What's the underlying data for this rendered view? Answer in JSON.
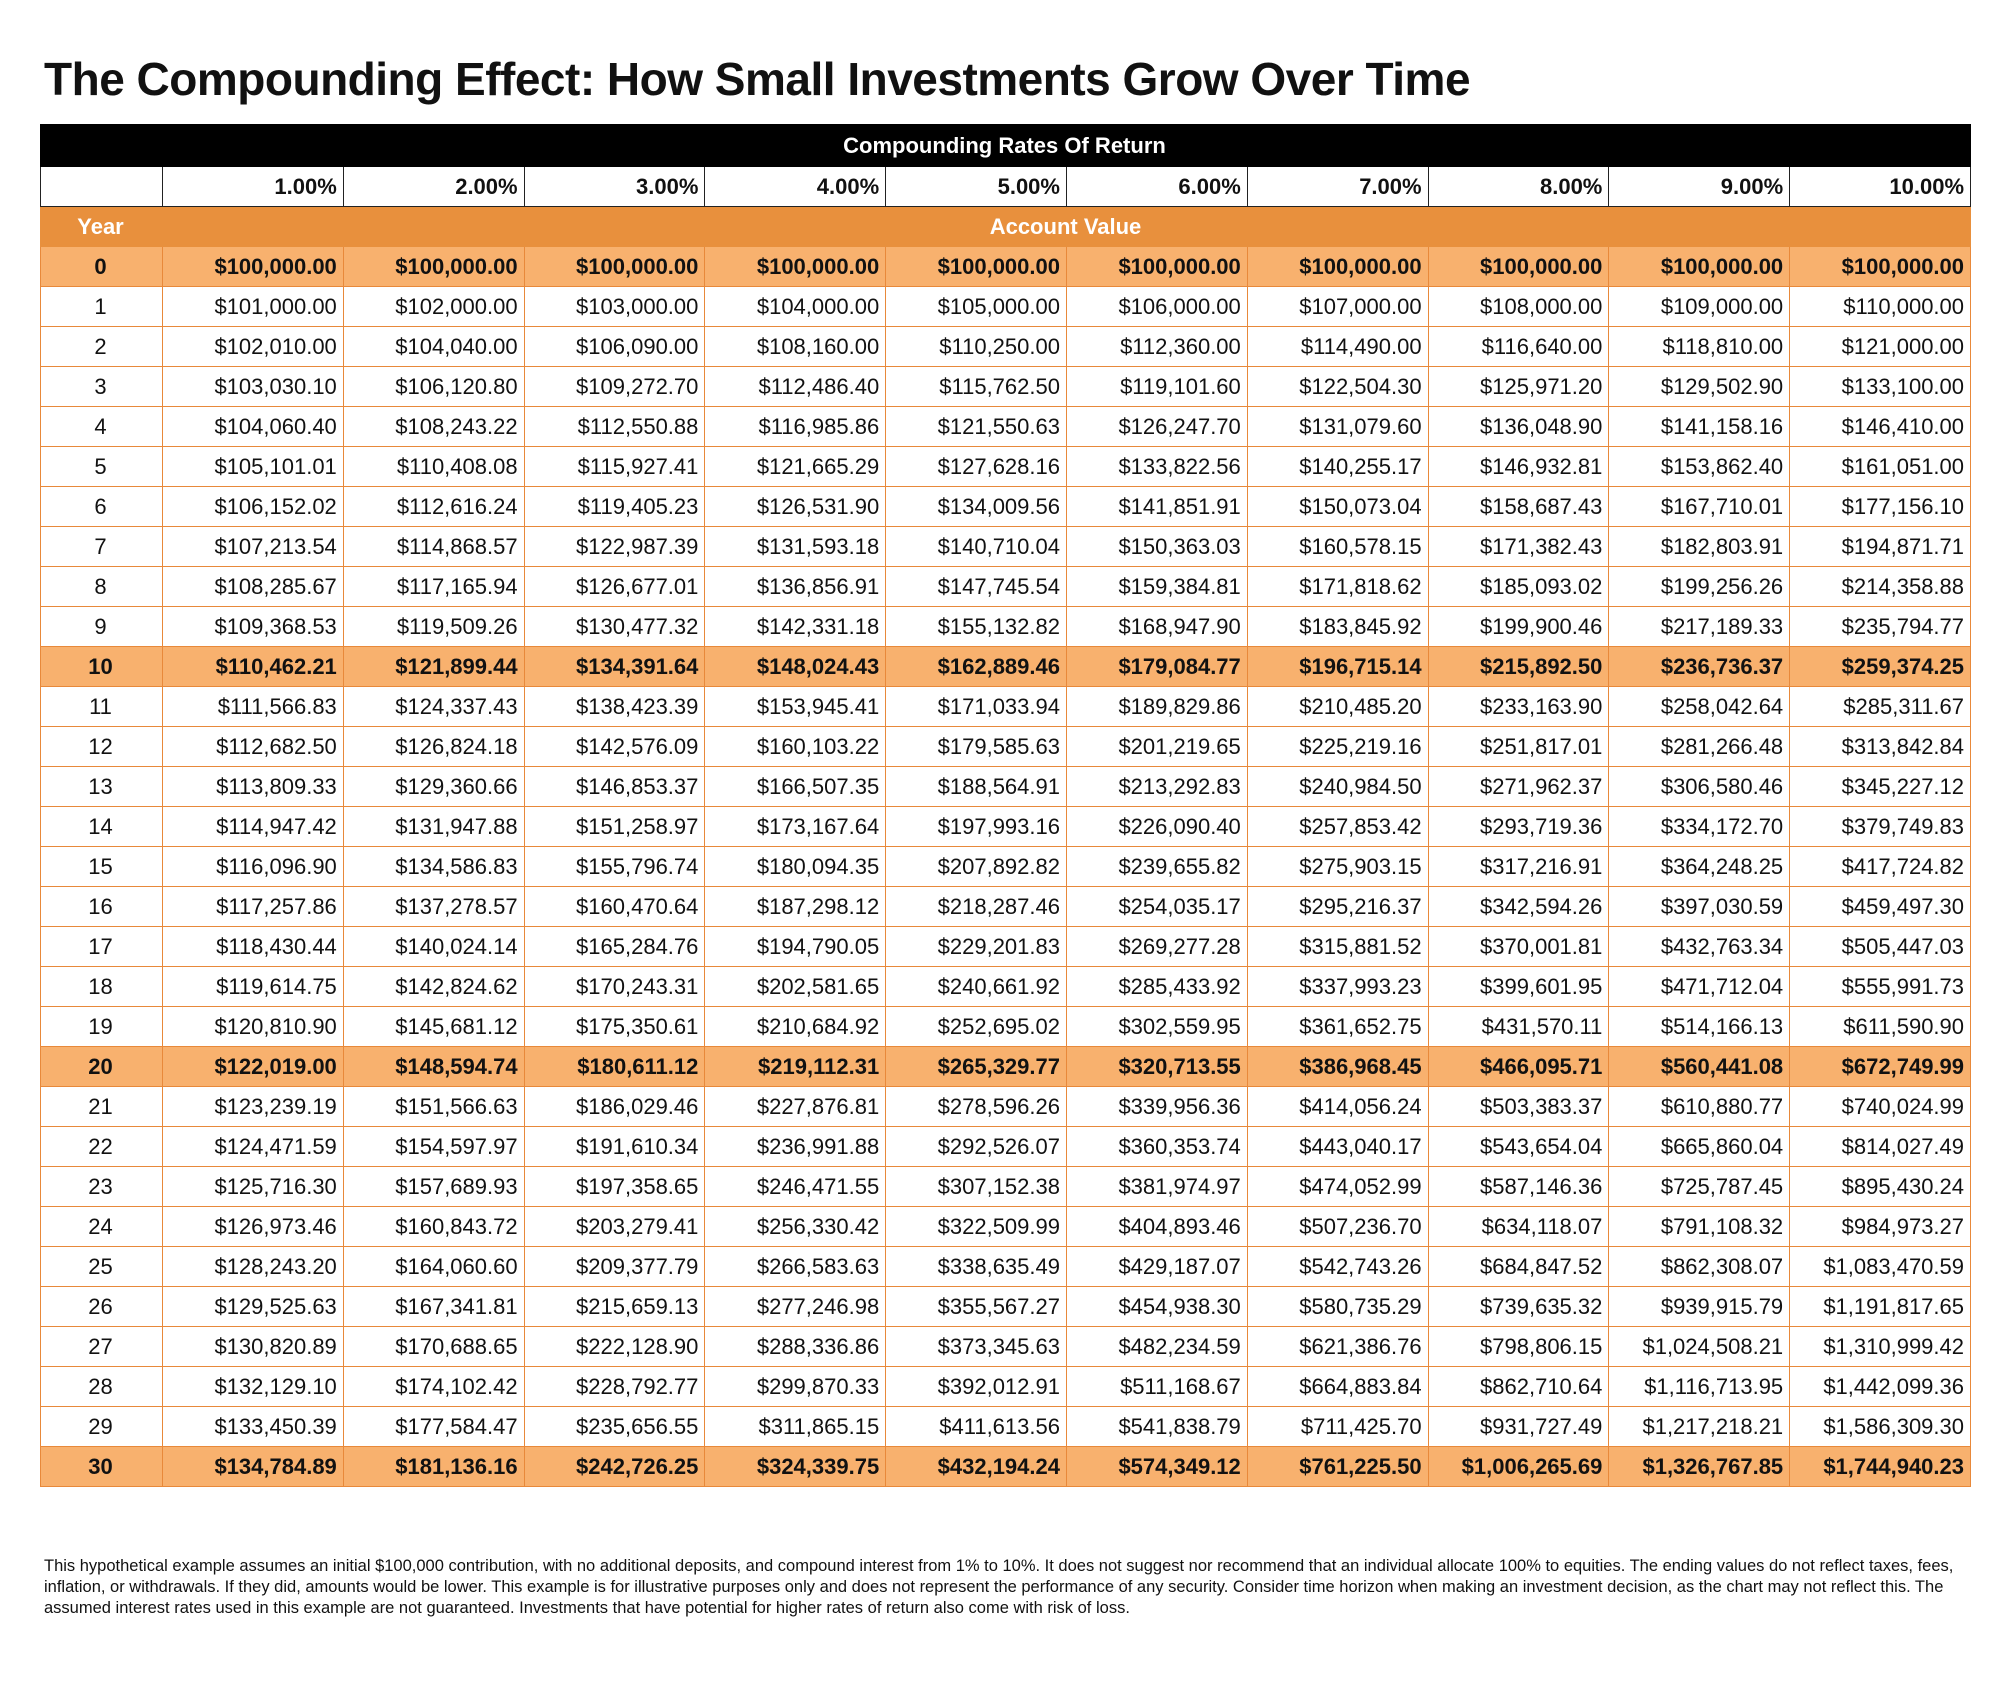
{
  "title": "The Compounding Effect: How Small Investments Grow Over Time",
  "table": {
    "group_header": "Compounding Rates Of Return",
    "year_label": "Year",
    "account_value_label": "Account Value",
    "rates": [
      "1.00%",
      "2.00%",
      "3.00%",
      "4.00%",
      "5.00%",
      "6.00%",
      "7.00%",
      "8.00%",
      "9.00%",
      "10.00%"
    ],
    "rows": [
      {
        "year": "0",
        "values": [
          "$100,000.00",
          "$100,000.00",
          "$100,000.00",
          "$100,000.00",
          "$100,000.00",
          "$100,000.00",
          "$100,000.00",
          "$100,000.00",
          "$100,000.00",
          "$100,000.00"
        ]
      },
      {
        "year": "1",
        "values": [
          "$101,000.00",
          "$102,000.00",
          "$103,000.00",
          "$104,000.00",
          "$105,000.00",
          "$106,000.00",
          "$107,000.00",
          "$108,000.00",
          "$109,000.00",
          "$110,000.00"
        ]
      },
      {
        "year": "2",
        "values": [
          "$102,010.00",
          "$104,040.00",
          "$106,090.00",
          "$108,160.00",
          "$110,250.00",
          "$112,360.00",
          "$114,490.00",
          "$116,640.00",
          "$118,810.00",
          "$121,000.00"
        ]
      },
      {
        "year": "3",
        "values": [
          "$103,030.10",
          "$106,120.80",
          "$109,272.70",
          "$112,486.40",
          "$115,762.50",
          "$119,101.60",
          "$122,504.30",
          "$125,971.20",
          "$129,502.90",
          "$133,100.00"
        ]
      },
      {
        "year": "4",
        "values": [
          "$104,060.40",
          "$108,243.22",
          "$112,550.88",
          "$116,985.86",
          "$121,550.63",
          "$126,247.70",
          "$131,079.60",
          "$136,048.90",
          "$141,158.16",
          "$146,410.00"
        ]
      },
      {
        "year": "5",
        "values": [
          "$105,101.01",
          "$110,408.08",
          "$115,927.41",
          "$121,665.29",
          "$127,628.16",
          "$133,822.56",
          "$140,255.17",
          "$146,932.81",
          "$153,862.40",
          "$161,051.00"
        ]
      },
      {
        "year": "6",
        "values": [
          "$106,152.02",
          "$112,616.24",
          "$119,405.23",
          "$126,531.90",
          "$134,009.56",
          "$141,851.91",
          "$150,073.04",
          "$158,687.43",
          "$167,710.01",
          "$177,156.10"
        ]
      },
      {
        "year": "7",
        "values": [
          "$107,213.54",
          "$114,868.57",
          "$122,987.39",
          "$131,593.18",
          "$140,710.04",
          "$150,363.03",
          "$160,578.15",
          "$171,382.43",
          "$182,803.91",
          "$194,871.71"
        ]
      },
      {
        "year": "8",
        "values": [
          "$108,285.67",
          "$117,165.94",
          "$126,677.01",
          "$136,856.91",
          "$147,745.54",
          "$159,384.81",
          "$171,818.62",
          "$185,093.02",
          "$199,256.26",
          "$214,358.88"
        ]
      },
      {
        "year": "9",
        "values": [
          "$109,368.53",
          "$119,509.26",
          "$130,477.32",
          "$142,331.18",
          "$155,132.82",
          "$168,947.90",
          "$183,845.92",
          "$199,900.46",
          "$217,189.33",
          "$235,794.77"
        ]
      },
      {
        "year": "10",
        "values": [
          "$110,462.21",
          "$121,899.44",
          "$134,391.64",
          "$148,024.43",
          "$162,889.46",
          "$179,084.77",
          "$196,715.14",
          "$215,892.50",
          "$236,736.37",
          "$259,374.25"
        ]
      },
      {
        "year": "11",
        "values": [
          "$111,566.83",
          "$124,337.43",
          "$138,423.39",
          "$153,945.41",
          "$171,033.94",
          "$189,829.86",
          "$210,485.20",
          "$233,163.90",
          "$258,042.64",
          "$285,311.67"
        ]
      },
      {
        "year": "12",
        "values": [
          "$112,682.50",
          "$126,824.18",
          "$142,576.09",
          "$160,103.22",
          "$179,585.63",
          "$201,219.65",
          "$225,219.16",
          "$251,817.01",
          "$281,266.48",
          "$313,842.84"
        ]
      },
      {
        "year": "13",
        "values": [
          "$113,809.33",
          "$129,360.66",
          "$146,853.37",
          "$166,507.35",
          "$188,564.91",
          "$213,292.83",
          "$240,984.50",
          "$271,962.37",
          "$306,580.46",
          "$345,227.12"
        ]
      },
      {
        "year": "14",
        "values": [
          "$114,947.42",
          "$131,947.88",
          "$151,258.97",
          "$173,167.64",
          "$197,993.16",
          "$226,090.40",
          "$257,853.42",
          "$293,719.36",
          "$334,172.70",
          "$379,749.83"
        ]
      },
      {
        "year": "15",
        "values": [
          "$116,096.90",
          "$134,586.83",
          "$155,796.74",
          "$180,094.35",
          "$207,892.82",
          "$239,655.82",
          "$275,903.15",
          "$317,216.91",
          "$364,248.25",
          "$417,724.82"
        ]
      },
      {
        "year": "16",
        "values": [
          "$117,257.86",
          "$137,278.57",
          "$160,470.64",
          "$187,298.12",
          "$218,287.46",
          "$254,035.17",
          "$295,216.37",
          "$342,594.26",
          "$397,030.59",
          "$459,497.30"
        ]
      },
      {
        "year": "17",
        "values": [
          "$118,430.44",
          "$140,024.14",
          "$165,284.76",
          "$194,790.05",
          "$229,201.83",
          "$269,277.28",
          "$315,881.52",
          "$370,001.81",
          "$432,763.34",
          "$505,447.03"
        ]
      },
      {
        "year": "18",
        "values": [
          "$119,614.75",
          "$142,824.62",
          "$170,243.31",
          "$202,581.65",
          "$240,661.92",
          "$285,433.92",
          "$337,993.23",
          "$399,601.95",
          "$471,712.04",
          "$555,991.73"
        ]
      },
      {
        "year": "19",
        "values": [
          "$120,810.90",
          "$145,681.12",
          "$175,350.61",
          "$210,684.92",
          "$252,695.02",
          "$302,559.95",
          "$361,652.75",
          "$431,570.11",
          "$514,166.13",
          "$611,590.90"
        ]
      },
      {
        "year": "20",
        "values": [
          "$122,019.00",
          "$148,594.74",
          "$180,611.12",
          "$219,112.31",
          "$265,329.77",
          "$320,713.55",
          "$386,968.45",
          "$466,095.71",
          "$560,441.08",
          "$672,749.99"
        ]
      },
      {
        "year": "21",
        "values": [
          "$123,239.19",
          "$151,566.63",
          "$186,029.46",
          "$227,876.81",
          "$278,596.26",
          "$339,956.36",
          "$414,056.24",
          "$503,383.37",
          "$610,880.77",
          "$740,024.99"
        ]
      },
      {
        "year": "22",
        "values": [
          "$124,471.59",
          "$154,597.97",
          "$191,610.34",
          "$236,991.88",
          "$292,526.07",
          "$360,353.74",
          "$443,040.17",
          "$543,654.04",
          "$665,860.04",
          "$814,027.49"
        ]
      },
      {
        "year": "23",
        "values": [
          "$125,716.30",
          "$157,689.93",
          "$197,358.65",
          "$246,471.55",
          "$307,152.38",
          "$381,974.97",
          "$474,052.99",
          "$587,146.36",
          "$725,787.45",
          "$895,430.24"
        ]
      },
      {
        "year": "24",
        "values": [
          "$126,973.46",
          "$160,843.72",
          "$203,279.41",
          "$256,330.42",
          "$322,509.99",
          "$404,893.46",
          "$507,236.70",
          "$634,118.07",
          "$791,108.32",
          "$984,973.27"
        ]
      },
      {
        "year": "25",
        "values": [
          "$128,243.20",
          "$164,060.60",
          "$209,377.79",
          "$266,583.63",
          "$338,635.49",
          "$429,187.07",
          "$542,743.26",
          "$684,847.52",
          "$862,308.07",
          "$1,083,470.59"
        ]
      },
      {
        "year": "26",
        "values": [
          "$129,525.63",
          "$167,341.81",
          "$215,659.13",
          "$277,246.98",
          "$355,567.27",
          "$454,938.30",
          "$580,735.29",
          "$739,635.32",
          "$939,915.79",
          "$1,191,817.65"
        ]
      },
      {
        "year": "27",
        "values": [
          "$130,820.89",
          "$170,688.65",
          "$222,128.90",
          "$288,336.86",
          "$373,345.63",
          "$482,234.59",
          "$621,386.76",
          "$798,806.15",
          "$1,024,508.21",
          "$1,310,999.42"
        ]
      },
      {
        "year": "28",
        "values": [
          "$132,129.10",
          "$174,102.42",
          "$228,792.77",
          "$299,870.33",
          "$392,012.91",
          "$511,168.67",
          "$664,883.84",
          "$862,710.64",
          "$1,116,713.95",
          "$1,442,099.36"
        ]
      },
      {
        "year": "29",
        "values": [
          "$133,450.39",
          "$177,584.47",
          "$235,656.55",
          "$311,865.15",
          "$411,613.56",
          "$541,838.79",
          "$711,425.70",
          "$931,727.49",
          "$1,217,218.21",
          "$1,586,309.30"
        ]
      },
      {
        "year": "30",
        "values": [
          "$134,784.89",
          "$181,136.16",
          "$242,726.25",
          "$324,339.75",
          "$432,194.24",
          "$574,349.12",
          "$761,225.50",
          "$1,006,265.69",
          "$1,326,767.85",
          "$1,744,940.23"
        ]
      }
    ],
    "milestone_years": [
      "0",
      "10",
      "20",
      "30"
    ]
  },
  "footnote": "This hypothetical example assumes an initial $100,000 contribution, with no additional deposits, and compound interest from 1% to 10%. It does not suggest nor recommend that an individual allocate 100% to equities. The ending values do not reflect taxes, fees, inflation, or withdrawals. If they did, amounts would be lower. This example is for illustrative purposes only and does not represent the performance of any security. Consider time horizon when making an investment decision, as the chart may not reflect this. The assumed interest rates used in this example are not guaranteed. Investments that have potential for higher rates of return also come with risk of loss.",
  "colors": {
    "header_bg": "#000000",
    "accent_orange": "#e8903d",
    "milestone_row": "#f8b16e",
    "grid_line": "#e8893a"
  }
}
